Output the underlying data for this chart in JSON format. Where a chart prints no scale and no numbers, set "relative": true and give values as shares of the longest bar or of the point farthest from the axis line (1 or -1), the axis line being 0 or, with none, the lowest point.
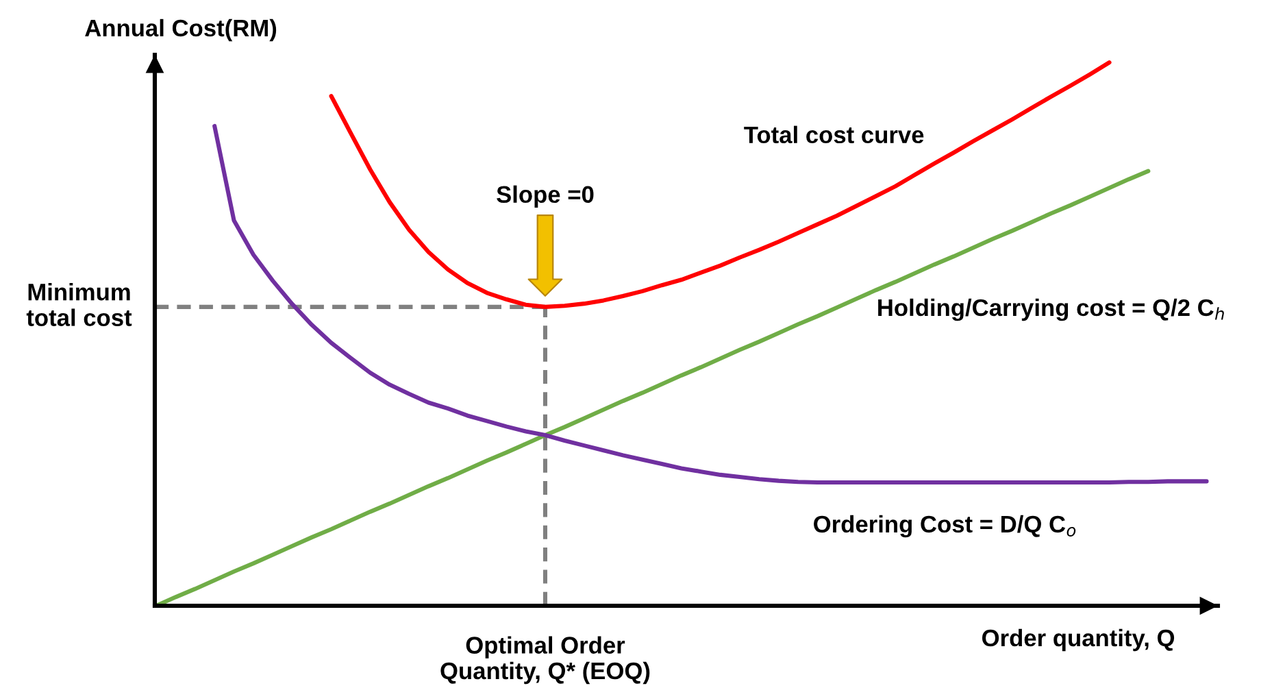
{
  "chart_data": {
    "type": "line",
    "relative": true,
    "xlabel": "Order quantity, Q",
    "ylabel": "Annual Cost(RM)",
    "categories": [
      null,
      null,
      null,
      null,
      null,
      null,
      null,
      null,
      null,
      null,
      null,
      null,
      null,
      null,
      null,
      null,
      null,
      null,
      null,
      null,
      null,
      null,
      null,
      null,
      null,
      null,
      null,
      null,
      null,
      null,
      null,
      null,
      null,
      null,
      null,
      null,
      null,
      null,
      null,
      null,
      null,
      null,
      null,
      null,
      null,
      null,
      null,
      null,
      null,
      null,
      null,
      null,
      null,
      null,
      null
    ],
    "series": [
      {
        "name": "Total cost curve",
        "color": "#ff0000",
        "values": [
          null,
          null,
          null,
          null,
          null,
          null,
          null,
          null,
          null,
          0.938,
          0.87,
          0.803,
          0.743,
          0.692,
          0.651,
          0.619,
          0.594,
          0.576,
          0.564,
          0.554,
          0.55,
          0.552,
          0.556,
          0.562,
          0.57,
          0.579,
          0.59,
          0.6,
          0.613,
          0.626,
          0.641,
          0.655,
          0.67,
          0.686,
          0.702,
          0.718,
          0.736,
          0.754,
          0.772,
          0.793,
          0.814,
          0.834,
          0.855,
          0.875,
          0.895,
          0.916,
          0.937,
          0.957,
          0.978,
          1.0,
          null,
          null,
          null,
          null,
          null
        ]
      },
      {
        "name": "Holding/Carrying cost = Q/2 C$_{h}$",
        "color": "#70ad47",
        "values": [
          0,
          0.016,
          0.031,
          0.047,
          0.063,
          0.078,
          0.094,
          0.11,
          0.126,
          0.141,
          0.157,
          0.173,
          0.188,
          0.204,
          0.22,
          0.235,
          0.251,
          0.267,
          0.282,
          0.298,
          0.314,
          0.329,
          0.345,
          0.361,
          0.377,
          0.392,
          0.408,
          0.424,
          0.439,
          0.455,
          0.471,
          0.486,
          0.502,
          0.518,
          0.533,
          0.549,
          0.565,
          0.581,
          0.596,
          0.612,
          0.628,
          0.643,
          0.659,
          0.675,
          0.69,
          0.706,
          0.722,
          0.737,
          0.753,
          0.769,
          0.785,
          0.8,
          null,
          null,
          null
        ]
      },
      {
        "name": "Ordering Cost = D/Q C$_{o}$",
        "color": "#7030a0",
        "values": [
          null,
          null,
          null,
          0.883,
          0.709,
          0.646,
          0.598,
          0.555,
          0.517,
          0.484,
          0.456,
          0.429,
          0.407,
          0.39,
          0.374,
          0.363,
          0.35,
          0.34,
          0.33,
          0.321,
          0.314,
          0.304,
          0.295,
          0.286,
          0.277,
          0.269,
          0.261,
          0.253,
          0.247,
          0.241,
          0.237,
          0.233,
          0.23,
          0.228,
          0.227,
          0.227,
          0.227,
          0.227,
          0.227,
          0.227,
          0.227,
          0.227,
          0.227,
          0.227,
          0.227,
          0.227,
          0.227,
          0.227,
          0.227,
          0.227,
          0.228,
          0.228,
          0.229,
          0.229,
          0.229
        ]
      }
    ],
    "ref_lines": [
      {
        "axis": "y",
        "value": 0.55,
        "label": "Minimum\ntotal cost",
        "color": "#808080",
        "line_style": "dashed"
      }
    ],
    "annotations": [
      "Slope =0",
      "Optimal Order\nQuantity, Q* (EOQ)"
    ]
  }
}
